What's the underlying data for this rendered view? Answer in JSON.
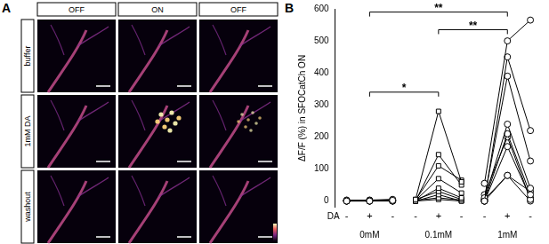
{
  "panel_a": {
    "label": "A",
    "columns": [
      "OFF",
      "ON",
      "OFF"
    ],
    "rows": [
      "buffer",
      "1mM DA",
      "washout"
    ]
  },
  "chart_data": {
    "type": "line",
    "label": "B",
    "y_label": "ΔF/F (%) in SFOCatCh ON",
    "x_row_label": "DA",
    "categories": [
      "-",
      "+",
      "-",
      "-",
      "+",
      "-",
      "-",
      "+",
      "-"
    ],
    "group_labels": [
      "0mM",
      "0.1mM",
      "1mM"
    ],
    "ylim": [
      -20,
      600
    ],
    "yticks": [
      0,
      100,
      200,
      300,
      400,
      500,
      600
    ],
    "grid": false,
    "series": [
      {
        "color": "#000000",
        "marker": "circle",
        "values": [
          0,
          0,
          2,
          null,
          null,
          null,
          null,
          null,
          null
        ]
      },
      {
        "color": "#000000",
        "marker": "circle",
        "values": [
          2,
          1,
          0,
          null,
          null,
          null,
          null,
          null,
          null
        ]
      },
      {
        "color": "#000000",
        "marker": "circle",
        "values": [
          0,
          3,
          5,
          null,
          null,
          null,
          null,
          null,
          null
        ]
      },
      {
        "color": "#000000",
        "marker": "circle",
        "values": [
          1,
          0,
          0,
          null,
          null,
          null,
          null,
          null,
          null
        ]
      },
      {
        "color": "#000000",
        "marker": "circle",
        "values": [
          0,
          0,
          1,
          null,
          null,
          null,
          null,
          null,
          null
        ]
      },
      {
        "color": "#000000",
        "marker": "circle",
        "values": [
          3,
          2,
          4,
          null,
          null,
          null,
          null,
          null,
          null
        ]
      },
      {
        "color": "#000000",
        "marker": "circle",
        "values": [
          0,
          1,
          0,
          null,
          null,
          null,
          null,
          null,
          null
        ]
      },
      {
        "color": "#000000",
        "marker": "circle",
        "values": [
          1,
          0,
          2,
          null,
          null,
          null,
          null,
          null,
          null
        ]
      },
      {
        "color": "#000000",
        "marker": "square",
        "values": [
          null,
          null,
          null,
          5,
          280,
          60,
          null,
          null,
          null
        ]
      },
      {
        "color": "#000000",
        "marker": "square",
        "values": [
          null,
          null,
          null,
          0,
          145,
          50,
          null,
          null,
          null
        ]
      },
      {
        "color": "#000000",
        "marker": "square",
        "values": [
          null,
          null,
          null,
          3,
          110,
          65,
          null,
          null,
          null
        ]
      },
      {
        "color": "#000000",
        "marker": "square",
        "values": [
          null,
          null,
          null,
          2,
          70,
          25,
          null,
          null,
          null
        ]
      },
      {
        "color": "#000000",
        "marker": "square",
        "values": [
          null,
          null,
          null,
          0,
          40,
          10,
          null,
          null,
          null
        ]
      },
      {
        "color": "#000000",
        "marker": "square",
        "values": [
          null,
          null,
          null,
          5,
          30,
          5,
          null,
          null,
          null
        ]
      },
      {
        "color": "#000000",
        "marker": "square",
        "values": [
          null,
          null,
          null,
          0,
          20,
          0,
          null,
          null,
          null
        ]
      },
      {
        "color": "#000000",
        "marker": "square",
        "values": [
          null,
          null,
          null,
          2,
          10,
          3,
          null,
          null,
          null
        ]
      },
      {
        "color": "#000000",
        "marker": "square",
        "values": [
          null,
          null,
          null,
          0,
          5,
          0,
          null,
          null,
          null
        ]
      },
      {
        "color": "#000000",
        "marker": "circle",
        "values": [
          null,
          null,
          null,
          null,
          null,
          null,
          55,
          500,
          565
        ]
      },
      {
        "color": "#000000",
        "marker": "circle",
        "values": [
          null,
          null,
          null,
          null,
          null,
          null,
          0,
          450,
          220
        ]
      },
      {
        "color": "#000000",
        "marker": "circle",
        "values": [
          null,
          null,
          null,
          null,
          null,
          null,
          10,
          390,
          125
        ]
      },
      {
        "color": "#000000",
        "marker": "circle",
        "values": [
          null,
          null,
          null,
          null,
          null,
          null,
          5,
          240,
          40
        ]
      },
      {
        "color": "#000000",
        "marker": "circle",
        "values": [
          null,
          null,
          null,
          null,
          null,
          null,
          0,
          210,
          20
        ]
      },
      {
        "color": "#000000",
        "marker": "circle",
        "values": [
          null,
          null,
          null,
          null,
          null,
          null,
          20,
          200,
          5
        ]
      },
      {
        "color": "#000000",
        "marker": "circle",
        "values": [
          null,
          null,
          null,
          null,
          null,
          null,
          0,
          170,
          10
        ]
      },
      {
        "color": "#000000",
        "marker": "circle",
        "values": [
          null,
          null,
          null,
          null,
          null,
          null,
          5,
          80,
          0
        ]
      },
      {
        "color": "#000000",
        "marker": "circle",
        "values": [
          null,
          null,
          null,
          null,
          null,
          null,
          0,
          80,
          30
        ]
      }
    ],
    "annotations": [
      {
        "from": 1,
        "to": 4,
        "y": 340,
        "label": "*"
      },
      {
        "from": 4,
        "to": 7,
        "y": 535,
        "label": "**"
      },
      {
        "from": 1,
        "to": 7,
        "y": 590,
        "label": "**"
      }
    ]
  }
}
